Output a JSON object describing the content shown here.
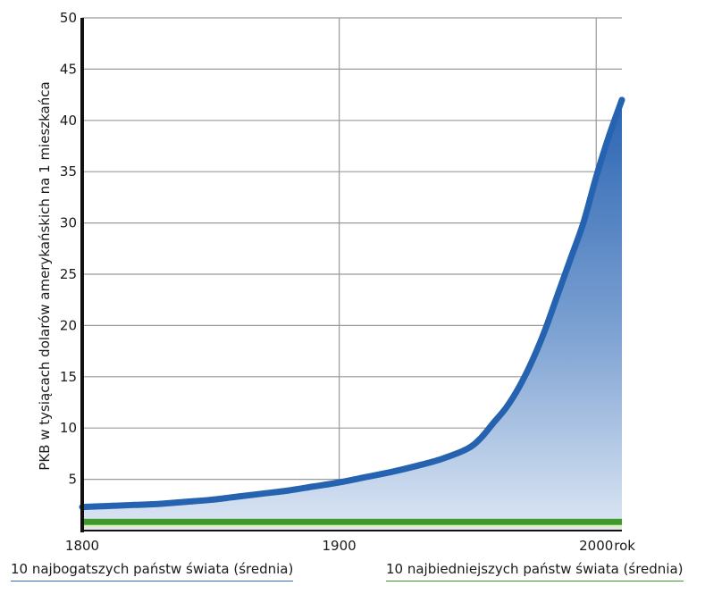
{
  "chart_data": {
    "type": "area",
    "ylabel": "PKB w tysiącach dolarów amerykańskich na 1 mieszkańca",
    "x_ticks": [
      1800,
      1900,
      2000
    ],
    "x_unit_label": "rok",
    "y_ticks": [
      5,
      10,
      15,
      20,
      25,
      30,
      35,
      40,
      45,
      50
    ],
    "xlim": [
      1800,
      2010
    ],
    "ylim": [
      0,
      50
    ],
    "grid": true,
    "series": [
      {
        "name": "10 najbogatszych państw świata (średnia)",
        "color": "#2563b0",
        "x": [
          1800,
          1810,
          1820,
          1830,
          1840,
          1850,
          1860,
          1870,
          1880,
          1890,
          1900,
          1910,
          1920,
          1930,
          1940,
          1950,
          1955,
          1960,
          1965,
          1970,
          1975,
          1980,
          1985,
          1990,
          1995,
          2000,
          2005,
          2010
        ],
        "y": [
          2.3,
          2.4,
          2.5,
          2.6,
          2.8,
          3.0,
          3.3,
          3.6,
          3.9,
          4.3,
          4.7,
          5.2,
          5.7,
          6.3,
          7.0,
          8.0,
          9.0,
          10.5,
          12.0,
          14.0,
          16.5,
          19.5,
          23.0,
          26.5,
          30.0,
          34.5,
          38.5,
          42.0
        ]
      },
      {
        "name": "10 najbiedniejszych państw świata (średnia)",
        "color": "#3f9a2c",
        "x": [
          1800,
          2010
        ],
        "y": [
          0.8,
          0.8
        ]
      }
    ],
    "legend": [
      "10 najbogatszych państw świata (średnia)",
      "10 najbiedniejszych państw świata (średnia)"
    ]
  }
}
